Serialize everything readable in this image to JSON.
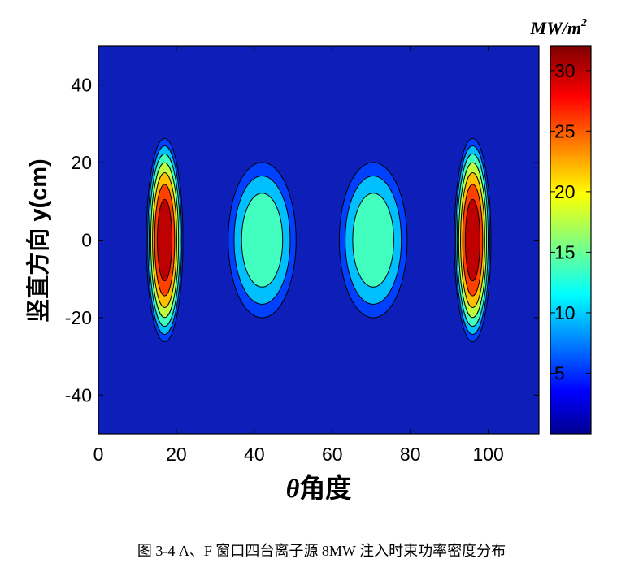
{
  "chart_data": {
    "type": "heatmap",
    "subtype": "filled-contour",
    "xlabel_symbol": "θ",
    "xlabel_text": "角度",
    "ylabel": "竖直方向 y(cm)",
    "xlim": [
      0,
      113
    ],
    "ylim": [
      -50,
      50
    ],
    "xticks": [
      0,
      20,
      40,
      60,
      80,
      100
    ],
    "yticks": [
      40,
      20,
      0,
      -20,
      -40
    ],
    "colorbar": {
      "unit": "MW/m2",
      "min": 0,
      "max": 32,
      "ticks": [
        5,
        10,
        15,
        20,
        25,
        30
      ]
    },
    "sources": [
      {
        "center_theta": 17,
        "center_y": 0,
        "peak": 32,
        "theta_halfwidth": 5,
        "y_halfwidth": 28
      },
      {
        "center_theta": 42,
        "center_y": 0,
        "peak": 16,
        "theta_halfwidth": 10,
        "y_halfwidth": 23
      },
      {
        "center_theta": 70.5,
        "center_y": 0,
        "peak": 16,
        "theta_halfwidth": 10,
        "y_halfwidth": 23
      },
      {
        "center_theta": 96,
        "center_y": 0,
        "peak": 32,
        "theta_halfwidth": 5,
        "y_halfwidth": 28
      }
    ]
  },
  "caption": "图 3-4 A、F 窗口四台离子源 8MW 注入时束功率密度分布"
}
